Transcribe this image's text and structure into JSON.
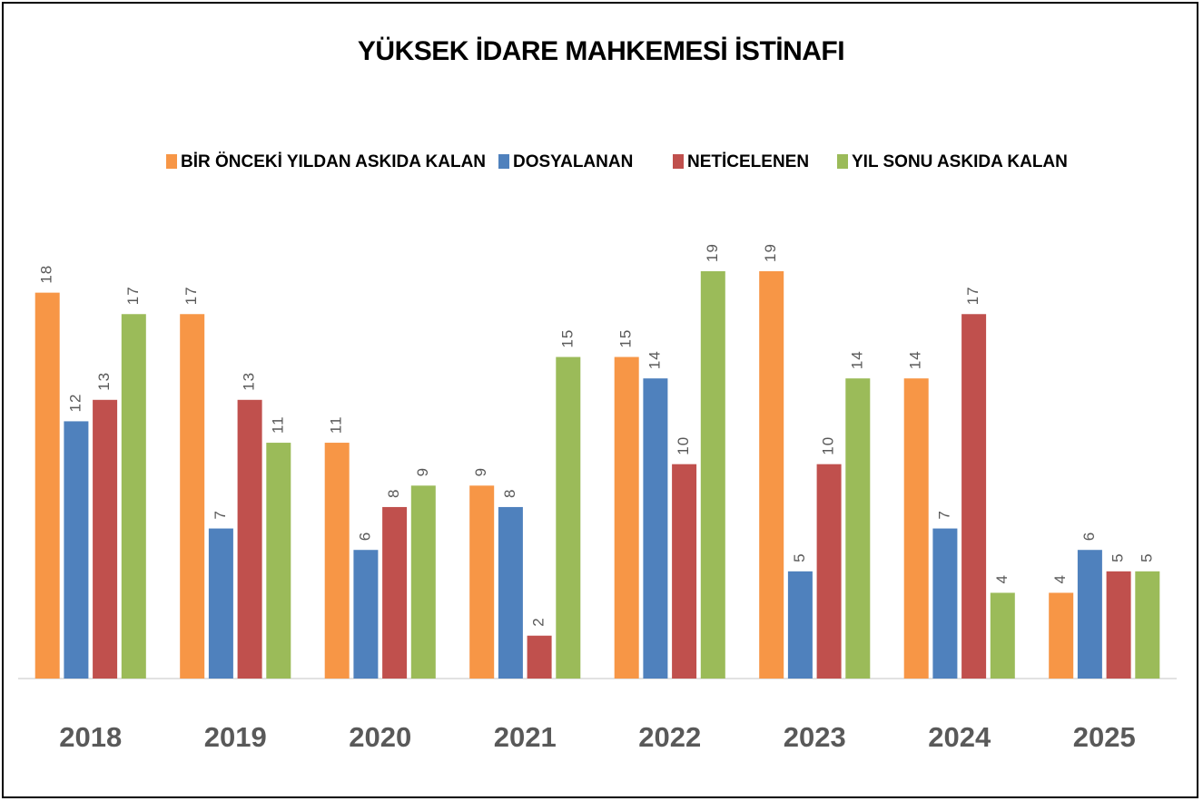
{
  "chart_data": {
    "type": "bar",
    "title": "YÜKSEK İDARE MAHKEMESİ İSTİNAFI",
    "categories": [
      "2018",
      "2019",
      "2020",
      "2021",
      "2022",
      "2023",
      "2024",
      "2025"
    ],
    "series": [
      {
        "name": "BİR ÖNCEKİ YILDAN ASKIDA KALAN",
        "color": "#f79646",
        "values": [
          18,
          17,
          11,
          9,
          15,
          19,
          14,
          4
        ]
      },
      {
        "name": "DOSYALANAN",
        "color": "#4f81bd",
        "values": [
          12,
          7,
          6,
          8,
          14,
          5,
          7,
          6
        ]
      },
      {
        "name": "NETİCELENEN",
        "color": "#c0504d",
        "values": [
          13,
          13,
          8,
          2,
          10,
          10,
          17,
          5
        ]
      },
      {
        "name": "YIL SONU ASKIDA KALAN",
        "color": "#9bbb59",
        "values": [
          17,
          11,
          9,
          15,
          19,
          14,
          4,
          5
        ]
      }
    ]
  }
}
